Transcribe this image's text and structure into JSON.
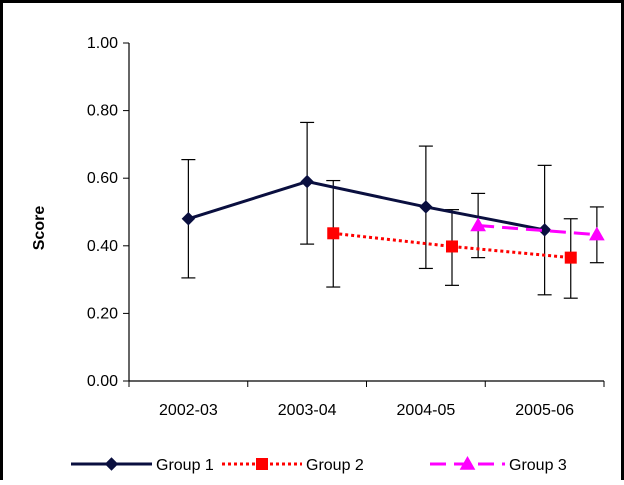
{
  "chart_data": {
    "type": "line",
    "title": "",
    "xlabel": "",
    "ylabel": "Score",
    "categories": [
      "2002-03",
      "2003-04",
      "2004-05",
      "2005-06"
    ],
    "ylim": [
      0,
      1
    ],
    "yticks": [
      "0.00",
      "0.20",
      "0.40",
      "0.60",
      "0.80",
      "1.00"
    ],
    "grid": false,
    "legend_position": "bottom",
    "series": [
      {
        "name": "Group 1",
        "color": "#0a0f3f",
        "line_style": "solid",
        "marker": "diamond",
        "points": [
          {
            "category": "2002-03",
            "offset": 0.0,
            "value": 0.48,
            "err_low": 0.305,
            "err_high": 0.655
          },
          {
            "category": "2003-04",
            "offset": 0.0,
            "value": 0.59,
            "err_low": 0.405,
            "err_high": 0.765
          },
          {
            "category": "2004-05",
            "offset": 0.0,
            "value": 0.515,
            "err_low": 0.333,
            "err_high": 0.695
          },
          {
            "category": "2005-06",
            "offset": 0.0,
            "value": 0.447,
            "err_low": 0.255,
            "err_high": 0.638
          }
        ]
      },
      {
        "name": "Group 2",
        "color": "#ff0000",
        "line_style": "dotted",
        "marker": "square",
        "points": [
          {
            "category": "2003-04",
            "offset": 0.22,
            "value": 0.437,
            "err_low": 0.278,
            "err_high": 0.593
          },
          {
            "category": "2004-05",
            "offset": 0.22,
            "value": 0.398,
            "err_low": 0.283,
            "err_high": 0.507
          },
          {
            "category": "2005-06",
            "offset": 0.22,
            "value": 0.365,
            "err_low": 0.245,
            "err_high": 0.48
          }
        ]
      },
      {
        "name": "Group 3",
        "color": "#ff00ff",
        "line_style": "dashed",
        "marker": "triangle",
        "points": [
          {
            "category": "2004-05",
            "offset": 0.44,
            "value": 0.46,
            "err_low": 0.365,
            "err_high": 0.555
          },
          {
            "category": "2005-06",
            "offset": 0.44,
            "value": 0.433,
            "err_low": 0.35,
            "err_high": 0.515
          }
        ]
      }
    ]
  }
}
